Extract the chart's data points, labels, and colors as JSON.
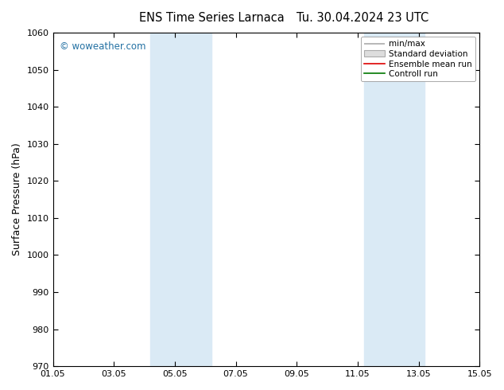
{
  "title_left": "ENS Time Series Larnaca",
  "title_right": "Tu. 30.04.2024 23 UTC",
  "ylabel": "Surface Pressure (hPa)",
  "ylim": [
    970,
    1060
  ],
  "yticks": [
    970,
    980,
    990,
    1000,
    1010,
    1020,
    1030,
    1040,
    1050,
    1060
  ],
  "xlim_start": 0,
  "xlim_end": 14,
  "xtick_labels": [
    "01.05",
    "03.05",
    "05.05",
    "07.05",
    "09.05",
    "11.05",
    "13.05",
    "15.05"
  ],
  "xtick_positions": [
    0,
    2,
    4,
    6,
    8,
    10,
    12,
    14
  ],
  "shaded_bands": [
    {
      "xmin": 3.2,
      "xmax": 5.2
    },
    {
      "xmin": 10.2,
      "xmax": 12.2
    }
  ],
  "band_color": "#daeaf5",
  "background_color": "#ffffff",
  "watermark_text": "© woweather.com",
  "watermark_color": "#2471a3",
  "legend_labels": [
    "min/max",
    "Standard deviation",
    "Ensemble mean run",
    "Controll run"
  ],
  "legend_minmax_color": "#aaaaaa",
  "legend_std_facecolor": "#dddddd",
  "legend_std_edgecolor": "#aaaaaa",
  "legend_ens_color": "#dd0000",
  "legend_ctrl_color": "#007700",
  "spine_color": "#000000",
  "tick_color": "#000000",
  "fig_width": 6.34,
  "fig_height": 4.9,
  "dpi": 100
}
